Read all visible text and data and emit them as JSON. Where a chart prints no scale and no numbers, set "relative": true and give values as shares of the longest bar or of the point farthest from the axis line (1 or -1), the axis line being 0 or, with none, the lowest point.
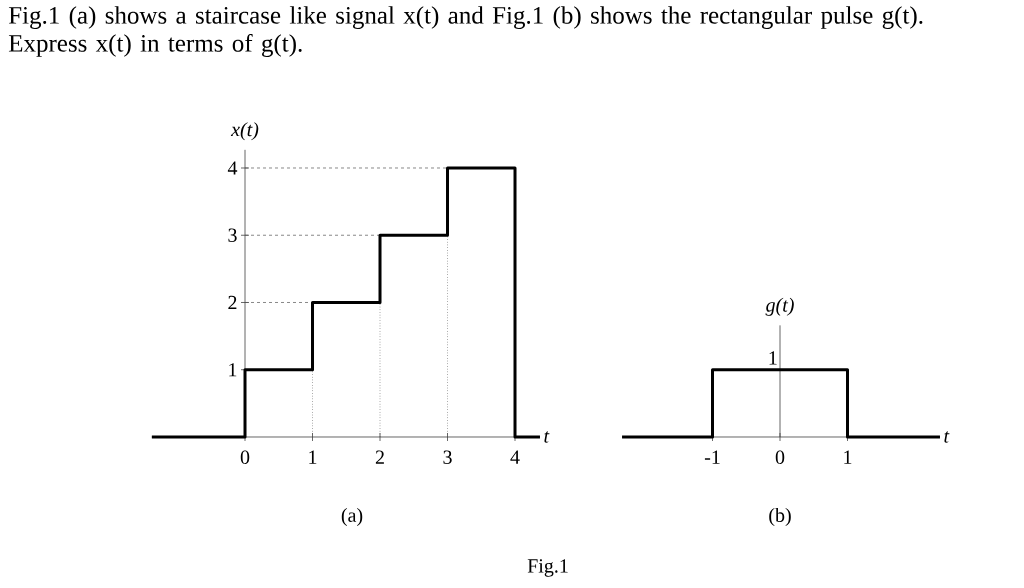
{
  "chart_data": [
    {
      "type": "step",
      "title": "Fig.1 (a) shows a staircase like signal x(t) and Fig.1 (b) shows the rectangular pulse g(t). Express x(t) in terms of g(t).",
      "xlabel": "t",
      "ylabel": "x(t)",
      "x": [
        -1.38,
        0,
        1,
        2,
        3,
        4,
        4.37
      ],
      "values": [
        0,
        1,
        2,
        3,
        4,
        0,
        0
      ],
      "color": "#000000",
      "xlim": [
        -1.38,
        4.37
      ],
      "ylim": [
        0,
        4.27
      ],
      "xticks": [
        0,
        1,
        2,
        3,
        4
      ],
      "yticks": [
        1,
        2,
        3,
        4
      ],
      "ref_lines": [
        {
          "axis": "y",
          "value": 2,
          "color": "#555555",
          "line_style": "dashed"
        },
        {
          "axis": "y",
          "value": 3,
          "color": "#555555",
          "line_style": "dashed"
        },
        {
          "axis": "y",
          "value": 4,
          "color": "#555555",
          "line_style": "dashed"
        },
        {
          "axis": "x",
          "value": 1,
          "color": "#555555",
          "line_style": "dotted"
        },
        {
          "axis": "x",
          "value": 2,
          "color": "#555555",
          "line_style": "dotted"
        },
        {
          "axis": "x",
          "value": 3,
          "color": "#555555",
          "line_style": "dotted"
        }
      ],
      "annotations": [
        "(a)",
        "Fig.1"
      ]
    },
    {
      "type": "step",
      "xlabel": "t",
      "ylabel": "g(t)",
      "x": [
        -2.34,
        -1,
        1,
        2.37
      ],
      "values": [
        0,
        1,
        0,
        0
      ],
      "color": "#000000",
      "relative": true,
      "xlim": [
        -2.34,
        2.37
      ],
      "xticks": [
        -1,
        0,
        1
      ],
      "annotations": [
        "(b)",
        {
          "text": "1",
          "x": 0,
          "y": 1
        }
      ]
    }
  ]
}
